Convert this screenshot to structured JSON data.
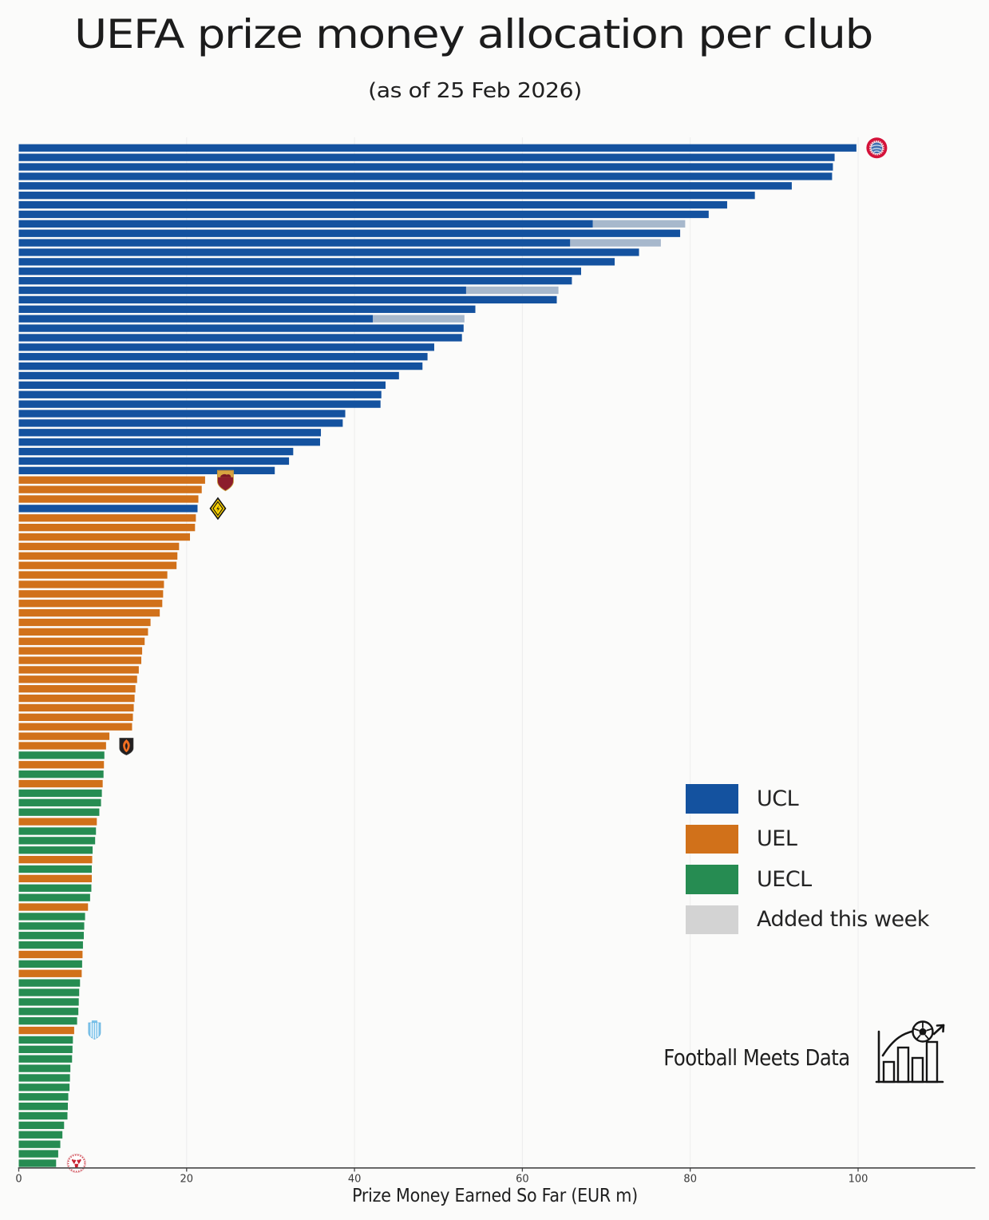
{
  "title": "UEFA prize money allocation per club",
  "subtitle": "(as of 25 Feb 2026)",
  "legend": {
    "items": [
      {
        "label": "UCL",
        "color": "#14529f"
      },
      {
        "label": "UEL",
        "color": "#d1711a"
      },
      {
        "label": "UECL",
        "color": "#268c52"
      },
      {
        "label": "Added this week",
        "color": "#d3d3d3"
      }
    ]
  },
  "footer": {
    "brand": "Football Meets Data"
  },
  "chart_data": {
    "type": "bar",
    "orientation": "horizontal",
    "title": "UEFA prize money allocation per club",
    "subtitle": "(as of 25 Feb 2026)",
    "xlabel": "Prize Money Earned So Far (EUR m)",
    "ylabel": "",
    "x_ticks": [
      0,
      20,
      40,
      60,
      80,
      100
    ],
    "xlim": [
      0,
      114
    ],
    "grid": "vertical, light gray",
    "legend_position": "center right",
    "colors": {
      "UCL": "#14529f",
      "UEL": "#d1711a",
      "UECL": "#268c52",
      "added": "#a7b8cc",
      "added_legend": "#d3d3d3"
    },
    "series_note": "108 clubs sorted by total prize money; 'added' is the light segment earned this week; 'logo' marks club crests shown next to bars",
    "bars": [
      {
        "value": 99.8,
        "competition": "UCL",
        "added": 0,
        "logo": "bayern-munich"
      },
      {
        "value": 97.2,
        "competition": "UCL",
        "added": 0
      },
      {
        "value": 97.0,
        "competition": "UCL",
        "added": 0
      },
      {
        "value": 96.9,
        "competition": "UCL",
        "added": 0
      },
      {
        "value": 92.1,
        "competition": "UCL",
        "added": 0
      },
      {
        "value": 87.7,
        "competition": "UCL",
        "added": 0
      },
      {
        "value": 84.4,
        "competition": "UCL",
        "added": 0
      },
      {
        "value": 82.2,
        "competition": "UCL",
        "added": 0
      },
      {
        "value": 79.4,
        "competition": "UCL",
        "added": 11.0
      },
      {
        "value": 78.8,
        "competition": "UCL",
        "added": 0
      },
      {
        "value": 76.5,
        "competition": "UCL",
        "added": 10.8
      },
      {
        "value": 73.9,
        "competition": "UCL",
        "added": 0
      },
      {
        "value": 71.0,
        "competition": "UCL",
        "added": 0
      },
      {
        "value": 67.0,
        "competition": "UCL",
        "added": 0
      },
      {
        "value": 65.9,
        "competition": "UCL",
        "added": 0
      },
      {
        "value": 64.3,
        "competition": "UCL",
        "added": 11.0
      },
      {
        "value": 64.1,
        "competition": "UCL",
        "added": 0
      },
      {
        "value": 54.4,
        "competition": "UCL",
        "added": 0
      },
      {
        "value": 53.1,
        "competition": "UCL",
        "added": 10.9
      },
      {
        "value": 53.0,
        "competition": "UCL",
        "added": 0
      },
      {
        "value": 52.8,
        "competition": "UCL",
        "added": 0
      },
      {
        "value": 49.5,
        "competition": "UCL",
        "added": 0
      },
      {
        "value": 48.7,
        "competition": "UCL",
        "added": 0
      },
      {
        "value": 48.1,
        "competition": "UCL",
        "added": 0
      },
      {
        "value": 45.3,
        "competition": "UCL",
        "added": 0
      },
      {
        "value": 43.7,
        "competition": "UCL",
        "added": 0
      },
      {
        "value": 43.2,
        "competition": "UCL",
        "added": 0
      },
      {
        "value": 43.1,
        "competition": "UCL",
        "added": 0
      },
      {
        "value": 38.9,
        "competition": "UCL",
        "added": 0
      },
      {
        "value": 38.6,
        "competition": "UCL",
        "added": 0
      },
      {
        "value": 36.0,
        "competition": "UCL",
        "added": 0
      },
      {
        "value": 35.9,
        "competition": "UCL",
        "added": 0
      },
      {
        "value": 32.7,
        "competition": "UCL",
        "added": 0
      },
      {
        "value": 32.2,
        "competition": "UCL",
        "added": 0
      },
      {
        "value": 30.5,
        "competition": "UCL",
        "added": 0
      },
      {
        "value": 22.2,
        "competition": "UEL",
        "added": 0,
        "logo": "as-roma"
      },
      {
        "value": 21.8,
        "competition": "UEL",
        "added": 0
      },
      {
        "value": 21.4,
        "competition": "UEL",
        "added": 0
      },
      {
        "value": 21.3,
        "competition": "UCL",
        "added": 0,
        "logo": "bodo-glimt"
      },
      {
        "value": 21.1,
        "competition": "UEL",
        "added": 0
      },
      {
        "value": 21.0,
        "competition": "UEL",
        "added": 0
      },
      {
        "value": 20.4,
        "competition": "UEL",
        "added": 0
      },
      {
        "value": 19.1,
        "competition": "UEL",
        "added": 0
      },
      {
        "value": 18.9,
        "competition": "UEL",
        "added": 0
      },
      {
        "value": 18.8,
        "competition": "UEL",
        "added": 0
      },
      {
        "value": 17.7,
        "competition": "UEL",
        "added": 0
      },
      {
        "value": 17.3,
        "competition": "UEL",
        "added": 0
      },
      {
        "value": 17.2,
        "competition": "UEL",
        "added": 0
      },
      {
        "value": 17.1,
        "competition": "UEL",
        "added": 0
      },
      {
        "value": 16.8,
        "competition": "UEL",
        "added": 0
      },
      {
        "value": 15.7,
        "competition": "UEL",
        "added": 0
      },
      {
        "value": 15.4,
        "competition": "UEL",
        "added": 0
      },
      {
        "value": 15.0,
        "competition": "UEL",
        "added": 0
      },
      {
        "value": 14.7,
        "competition": "UEL",
        "added": 0
      },
      {
        "value": 14.6,
        "competition": "UEL",
        "added": 0
      },
      {
        "value": 14.3,
        "competition": "UEL",
        "added": 0
      },
      {
        "value": 14.1,
        "competition": "UEL",
        "added": 0
      },
      {
        "value": 13.9,
        "competition": "UEL",
        "added": 0
      },
      {
        "value": 13.8,
        "competition": "UEL",
        "added": 0
      },
      {
        "value": 13.7,
        "competition": "UEL",
        "added": 0
      },
      {
        "value": 13.6,
        "competition": "UEL",
        "added": 0
      },
      {
        "value": 13.5,
        "competition": "UEL",
        "added": 0
      },
      {
        "value": 10.8,
        "competition": "UEL",
        "added": 0
      },
      {
        "value": 10.4,
        "competition": "UEL",
        "added": 0,
        "logo": "shakhtar-donetsk"
      },
      {
        "value": 10.2,
        "competition": "UECL",
        "added": 0
      },
      {
        "value": 10.15,
        "competition": "UEL",
        "added": 0
      },
      {
        "value": 10.1,
        "competition": "UECL",
        "added": 0
      },
      {
        "value": 10.0,
        "competition": "UEL",
        "added": 0
      },
      {
        "value": 9.9,
        "competition": "UECL",
        "added": 0
      },
      {
        "value": 9.8,
        "competition": "UECL",
        "added": 0
      },
      {
        "value": 9.6,
        "competition": "UECL",
        "added": 0
      },
      {
        "value": 9.3,
        "competition": "UEL",
        "added": 0
      },
      {
        "value": 9.2,
        "competition": "UECL",
        "added": 0
      },
      {
        "value": 9.1,
        "competition": "UECL",
        "added": 0
      },
      {
        "value": 8.8,
        "competition": "UECL",
        "added": 0
      },
      {
        "value": 8.75,
        "competition": "UEL",
        "added": 0
      },
      {
        "value": 8.7,
        "competition": "UECL",
        "added": 0
      },
      {
        "value": 8.7,
        "competition": "UEL",
        "added": 0
      },
      {
        "value": 8.65,
        "competition": "UECL",
        "added": 0
      },
      {
        "value": 8.5,
        "competition": "UECL",
        "added": 0
      },
      {
        "value": 8.25,
        "competition": "UEL",
        "added": 0
      },
      {
        "value": 7.9,
        "competition": "UECL",
        "added": 0
      },
      {
        "value": 7.8,
        "competition": "UECL",
        "added": 0
      },
      {
        "value": 7.75,
        "competition": "UECL",
        "added": 0
      },
      {
        "value": 7.65,
        "competition": "UECL",
        "added": 0
      },
      {
        "value": 7.6,
        "competition": "UEL",
        "added": 0
      },
      {
        "value": 7.55,
        "competition": "UECL",
        "added": 0
      },
      {
        "value": 7.5,
        "competition": "UEL",
        "added": 0
      },
      {
        "value": 7.3,
        "competition": "UECL",
        "added": 0
      },
      {
        "value": 7.2,
        "competition": "UECL",
        "added": 0
      },
      {
        "value": 7.15,
        "competition": "UECL",
        "added": 0
      },
      {
        "value": 7.1,
        "competition": "UECL",
        "added": 0
      },
      {
        "value": 6.95,
        "competition": "UECL",
        "added": 0
      },
      {
        "value": 6.6,
        "competition": "UEL",
        "added": 0,
        "logo": "malmo-ff"
      },
      {
        "value": 6.45,
        "competition": "UECL",
        "added": 0
      },
      {
        "value": 6.4,
        "competition": "UECL",
        "added": 0
      },
      {
        "value": 6.35,
        "competition": "UECL",
        "added": 0
      },
      {
        "value": 6.15,
        "competition": "UECL",
        "added": 0
      },
      {
        "value": 6.1,
        "competition": "UECL",
        "added": 0
      },
      {
        "value": 6.05,
        "competition": "UECL",
        "added": 0
      },
      {
        "value": 5.9,
        "competition": "UECL",
        "added": 0
      },
      {
        "value": 5.85,
        "competition": "UECL",
        "added": 0
      },
      {
        "value": 5.8,
        "competition": "UECL",
        "added": 0
      },
      {
        "value": 5.4,
        "competition": "UECL",
        "added": 0
      },
      {
        "value": 5.2,
        "competition": "UECL",
        "added": 0
      },
      {
        "value": 4.95,
        "competition": "UECL",
        "added": 0
      },
      {
        "value": 4.7,
        "competition": "UECL",
        "added": 0
      },
      {
        "value": 4.45,
        "competition": "UECL",
        "added": 0,
        "logo": "red-white-club"
      }
    ]
  }
}
